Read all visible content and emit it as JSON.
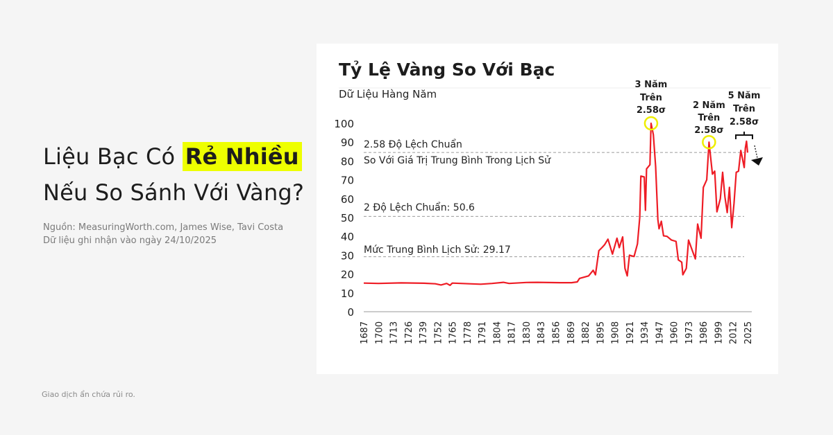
{
  "headline": {
    "part1": "Liệu Bạc Có ",
    "highlight": "Rẻ Nhiều",
    "line2": "Nếu So Sánh Với Vàng?"
  },
  "source": {
    "line1": "Nguồn: MeasuringWorth.com, James Wise, Tavi Costa",
    "line2": "Dữ liệu ghi nhận vào ngày 24/10/2025"
  },
  "footer": "Giao dịch ẩn chứa rủi ro.",
  "colors": {
    "background": "#f5f5f5",
    "card": "#ffffff",
    "line": "#ee1c25",
    "highlight": "#eeff00",
    "circle": "#eeee00",
    "reference": "#9a9a9a"
  },
  "chart_data": {
    "type": "line",
    "title": "Tỷ Lệ Vàng So Với Bạc",
    "subtitle": "Dữ Liệu Hàng Năm",
    "xlim": [
      1687,
      2025
    ],
    "ylim": [
      0,
      100
    ],
    "x_ticks": [
      "1687",
      "1700",
      "1713",
      "1726",
      "1739",
      "1752",
      "1765",
      "1778",
      "1791",
      "1804",
      "1817",
      "1830",
      "1843",
      "1856",
      "1869",
      "1882",
      "1895",
      "1908",
      "1921",
      "1934",
      "1947",
      "1960",
      "1973",
      "1986",
      "1999",
      "2012",
      "2025"
    ],
    "y_ticks": [
      "0",
      "10",
      "20",
      "30",
      "40",
      "50",
      "60",
      "70",
      "80",
      "90",
      "100"
    ],
    "grid": false,
    "reference_lines": [
      {
        "value": 84.5,
        "label_line1": "2.58 Độ Lệch Chuẩn",
        "label_line2": "So Với Giá  Trị Trung Bình Trong Lịch Sử"
      },
      {
        "value": 50.6,
        "label_line1": "2 Độ Lệch Chuẩn: 50.6"
      },
      {
        "value": 29.17,
        "label_line1": "Mức Trung Bình Lịch Sử: 29.17"
      }
    ],
    "annotations": [
      {
        "lines": [
          "3 Năm",
          "Trên",
          "2.58σ"
        ],
        "year": 1940,
        "marker": "circle"
      },
      {
        "lines": [
          "2 Năm",
          "Trên",
          "2.58σ"
        ],
        "year": 1991,
        "marker": "circle"
      },
      {
        "lines": [
          "5 Năm",
          "Trên",
          "2.58σ"
        ],
        "year": 2022,
        "marker": "bracket"
      }
    ],
    "series": [
      {
        "x": [
          1687,
          1700,
          1720,
          1740,
          1750,
          1755,
          1760,
          1763,
          1765,
          1780,
          1790,
          1800,
          1810,
          1815,
          1830,
          1840,
          1860,
          1870,
          1875,
          1877,
          1885,
          1889,
          1891,
          1894,
          1897,
          1899,
          1902,
          1906,
          1910,
          1912,
          1915,
          1917,
          1919,
          1921,
          1925,
          1928,
          1930,
          1931,
          1934,
          1935,
          1936,
          1939,
          1940,
          1942,
          1944,
          1946,
          1947,
          1949,
          1951,
          1954,
          1958,
          1962,
          1964,
          1967,
          1968,
          1971,
          1973,
          1976,
          1979,
          1981,
          1984,
          1986,
          1989,
          1991,
          1994,
          1996,
          1998,
          2001,
          2003,
          2005,
          2007,
          2009,
          2011,
          2013,
          2015,
          2017,
          2019,
          2022,
          2023,
          2024,
          2025
        ],
        "y": [
          15.2,
          15,
          15.3,
          15.1,
          14.8,
          14.2,
          15,
          14,
          15.2,
          14.8,
          14.6,
          15,
          15.6,
          15,
          15.5,
          15.6,
          15.4,
          15.4,
          15.8,
          17.7,
          19,
          22,
          19.6,
          32.4,
          34.2,
          35.5,
          38.5,
          30.6,
          39,
          34,
          39.7,
          23,
          19,
          30,
          29.3,
          36,
          50,
          72,
          71.5,
          53.8,
          75.8,
          78,
          100,
          94,
          77,
          49,
          44,
          48,
          40.3,
          40,
          38,
          37.3,
          27.5,
          26.3,
          19.6,
          23,
          38,
          33,
          28,
          46.5,
          39,
          66,
          70,
          90,
          73,
          74.6,
          53,
          60,
          74,
          61,
          52.6,
          66,
          44.6,
          57.5,
          74,
          74.6,
          85.6,
          76.5,
          86.8,
          90.5,
          84.4
        ]
      }
    ]
  }
}
